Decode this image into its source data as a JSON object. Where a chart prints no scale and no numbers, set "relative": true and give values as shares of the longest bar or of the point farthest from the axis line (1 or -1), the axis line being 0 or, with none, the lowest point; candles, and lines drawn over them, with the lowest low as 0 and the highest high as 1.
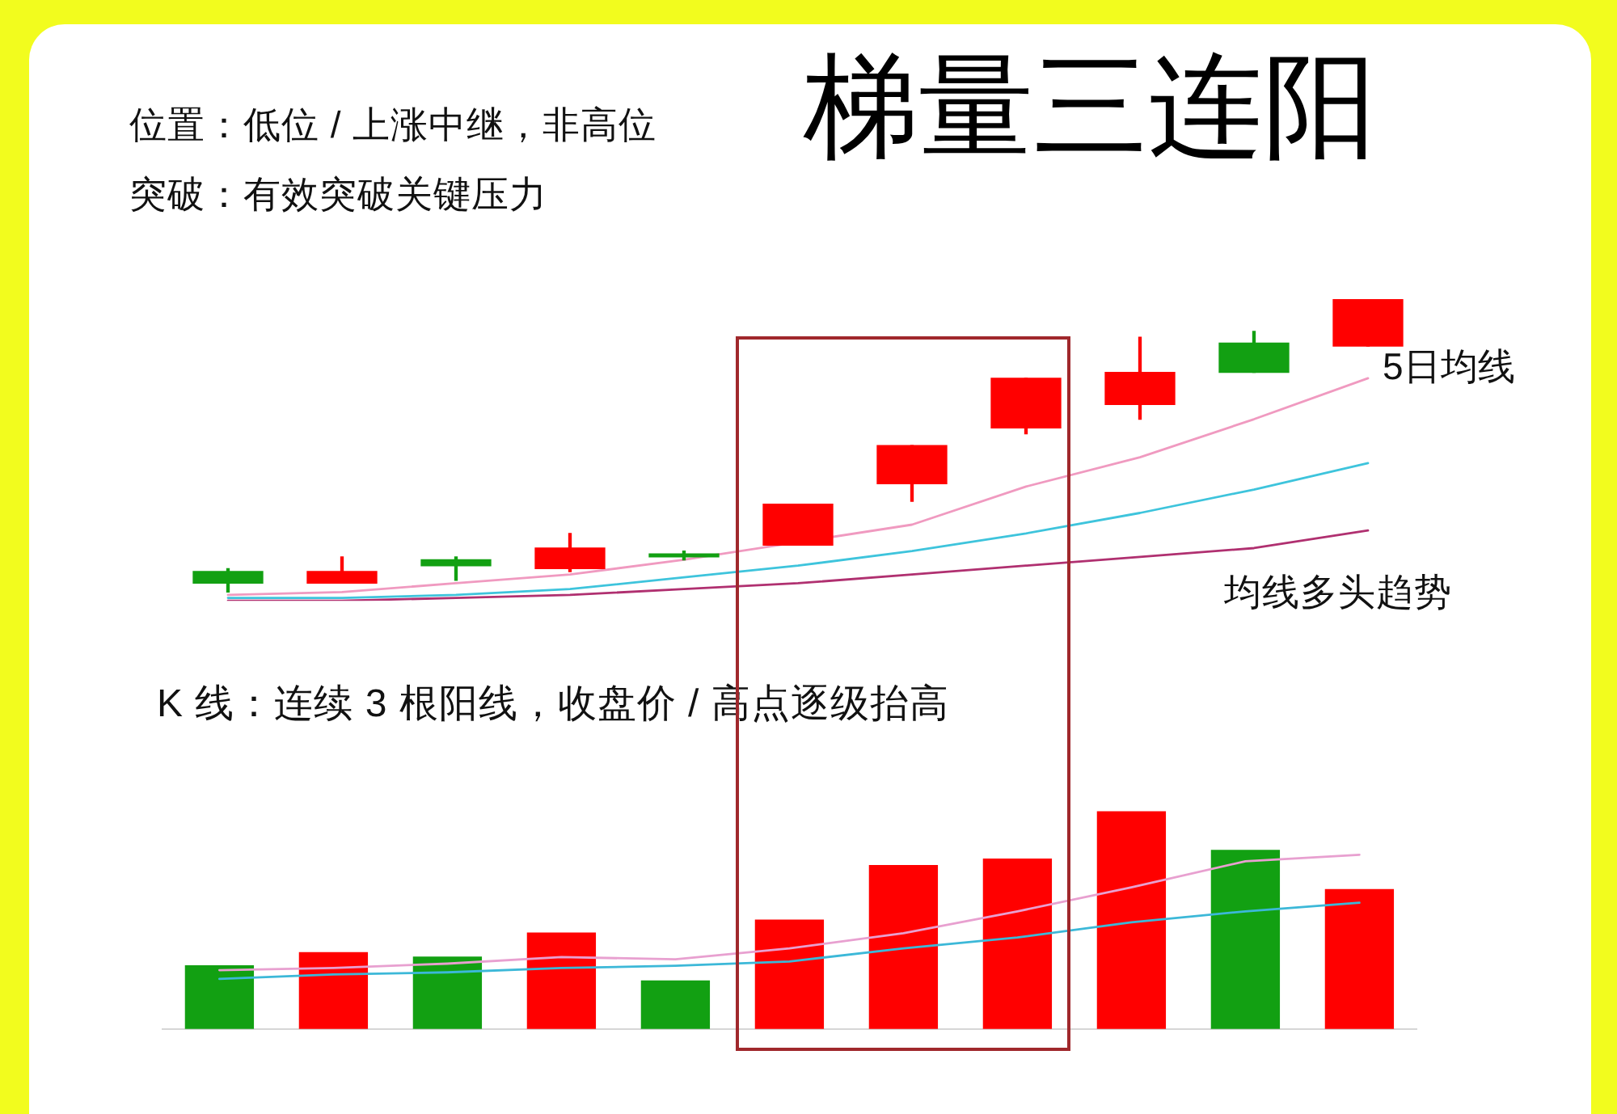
{
  "chart_data": [
    {
      "type": "candlestick",
      "title": "梯量三连阳",
      "annotations": [
        "位置：低位 / 上涨中继，非高位",
        "突破：有效突破关键压力",
        "均线多头趋势",
        "K 线：连续 3 根阳线，收盘价 / 高点逐级抬高"
      ],
      "categories": [
        null,
        null,
        null,
        null,
        null,
        null,
        null,
        null,
        null,
        null,
        null
      ],
      "relative": true,
      "ohlc": [
        [
          0.07,
          0.08,
          0,
          0.03
        ],
        [
          0.03,
          0.12,
          0.03,
          0.07
        ],
        [
          0.11,
          0.12,
          0.04,
          0.09
        ],
        [
          0.08,
          0.2,
          0.07,
          0.15
        ],
        [
          0.13,
          0.14,
          0.11,
          0.12
        ],
        [
          0.16,
          0.3,
          0.16,
          0.3
        ],
        [
          0.37,
          0.5,
          0.31,
          0.5
        ],
        [
          0.56,
          0.73,
          0.54,
          0.73
        ],
        [
          0.64,
          0.87,
          0.59,
          0.75
        ],
        [
          0.85,
          0.89,
          0.75,
          0.75
        ],
        [
          0.84,
          1,
          0.84,
          1
        ]
      ],
      "colors": [
        "#12a012",
        "#ff0000",
        "#12a012",
        "#ff0000",
        "#12a012",
        "#ff0000",
        "#ff0000",
        "#ff0000",
        "#ff0000",
        "#12a012",
        "#ff0000"
      ],
      "series": [
        {
          "type": "line",
          "name": "5日均线",
          "color": "#f09ac0",
          "values": [
            -0.01,
            0,
            0.03,
            0.06,
            0.11,
            null,
            0.23,
            0.36,
            0.46,
            0.59,
            0.73
          ]
        },
        {
          "type": "line",
          "color": "#3ec4dc",
          "values": [
            -0.02,
            -0.02,
            -0.01,
            0.01,
            0.05,
            0.09,
            0.14,
            0.2,
            0.27,
            0.35,
            0.44
          ]
        },
        {
          "type": "line",
          "color": "#b03070",
          "values": [
            -0.03,
            -0.03,
            -0.02,
            -0.01,
            0.01,
            0.03,
            0.06,
            0.09,
            0.12,
            0.15,
            0.21
          ]
        }
      ]
    },
    {
      "type": "bar",
      "categories": [
        null,
        null,
        null,
        null,
        null,
        null,
        null,
        null,
        null,
        null,
        null
      ],
      "relative": true,
      "series": [
        {
          "type": "bar",
          "colors": [
            "#12a012",
            "#ff0000",
            "#12a012",
            "#ff0000",
            "#12a012",
            "#ff0000",
            "#ff0000",
            "#ff0000",
            "#ff0000",
            "#12a012",
            "#ff0000"
          ],
          "values": [
            0.29,
            0.35,
            0.33,
            0.44,
            0.22,
            0.5,
            0.75,
            0.78,
            1,
            0.82,
            0.64
          ]
        },
        {
          "type": "line",
          "color": "#e8a0d0",
          "values": [
            0.27,
            0.28,
            0.3,
            0.33,
            0.32,
            0.37,
            0.44,
            0.54,
            0.65,
            0.77,
            0.8
          ]
        },
        {
          "type": "line",
          "color": "#3cb8d8",
          "values": [
            0.23,
            0.25,
            0.26,
            0.28,
            0.29,
            0.31,
            0.37,
            0.42,
            0.49,
            0.54,
            0.58
          ]
        }
      ]
    }
  ]
}
